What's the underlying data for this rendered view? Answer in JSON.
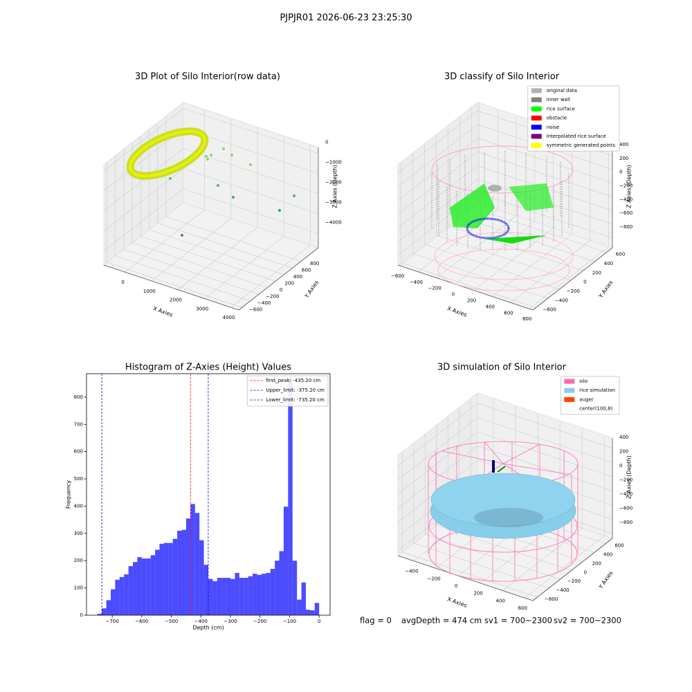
{
  "suptitle": "PJPJR01 2026-06-23 23:25:30",
  "chart_data": [
    {
      "type": "scatter3d",
      "title": "3D Plot of Silo Interior(row data)",
      "xlabel": "X Axies",
      "ylabel": "Y Axies",
      "zlabel": "Z Axies (Depth)",
      "xlim": [
        -800,
        4300
      ],
      "ylim": [
        -676,
        1216
      ],
      "zlim": [
        -4700,
        300
      ],
      "xticks": [
        0,
        1000,
        2000,
        3000,
        4000
      ],
      "yticks": [
        {
          "value": -600,
          "label": "−600"
        },
        {
          "value": -400,
          "label": "−400"
        },
        {
          "value": -200,
          "label": "−200"
        },
        0,
        200,
        400,
        600,
        800
      ],
      "zticks": [
        0,
        {
          "value": -1000,
          "label": "−1000"
        },
        {
          "value": -2000,
          "label": "−2000"
        },
        {
          "value": -3000,
          "label": "−3000"
        },
        {
          "value": -4000,
          "label": "−4000"
        }
      ]
    },
    {
      "type": "scatter3d",
      "title": "3D classify of Silo Interior",
      "xlabel": "X Axies",
      "ylabel": "Y Axies",
      "zlabel": "Z Axies (Depth)",
      "xlim": [
        -620,
        840
      ],
      "ylim": [
        -650,
        700
      ],
      "zlim": [
        -940,
        520
      ],
      "xticks": [
        {
          "value": -600,
          "label": "−600"
        },
        {
          "value": -400,
          "label": "−400"
        },
        {
          "value": -200,
          "label": "−200"
        },
        0,
        200,
        400,
        600,
        800
      ],
      "yticks": [
        {
          "value": -600,
          "label": "−600"
        },
        {
          "value": -400,
          "label": "−400"
        },
        {
          "value": -200,
          "label": "−200"
        },
        0,
        200,
        400,
        600
      ],
      "zticks": [
        {
          "value": -800,
          "label": "−800"
        },
        {
          "value": -600,
          "label": "−600"
        },
        {
          "value": -400,
          "label": "−400"
        },
        {
          "value": -200,
          "label": "−200"
        },
        0,
        200,
        400
      ],
      "legend": "upper right",
      "legend_items": [
        {
          "name": "original data",
          "color": "#b0b0b0"
        },
        {
          "name": "inner wall",
          "color": "#808080"
        },
        {
          "name": "rice surface",
          "color": "#00ff00"
        },
        {
          "name": "obstacle",
          "color": "#ff0000"
        },
        {
          "name": "noise",
          "color": "#0000ff"
        },
        {
          "name": "interpolated rice surface",
          "color": "#800080"
        },
        {
          "name": "symmetric generated points",
          "color": "#ffff00"
        }
      ]
    },
    {
      "type": "histogram",
      "title": "Histogram of Z-Axies (Height) Values",
      "xlabel": "Depth (cm)",
      "ylabel": "Frequency",
      "color": "#0000ff",
      "bins": [
        -750,
        -735,
        -720,
        -705,
        -690,
        -675,
        -660,
        -645,
        -630,
        -615,
        -600,
        -585,
        -570,
        -555,
        -540,
        -525,
        -510,
        -495,
        -480,
        -465,
        -450,
        -435,
        -420,
        -405,
        -390,
        -375,
        -360,
        -345,
        -330,
        -315,
        -300,
        -285,
        -270,
        -255,
        -240,
        -225,
        -210,
        -195,
        -180,
        -165,
        -150,
        -135,
        -120,
        -105,
        -90,
        -75,
        -60,
        -45,
        -30,
        -15,
        0
      ],
      "counts": [
        5,
        25,
        55,
        95,
        130,
        140,
        150,
        180,
        195,
        213,
        208,
        208,
        220,
        240,
        262,
        265,
        265,
        280,
        310,
        313,
        355,
        408,
        375,
        275,
        185,
        133,
        125,
        137,
        137,
        137,
        133,
        155,
        137,
        137,
        143,
        152,
        148,
        152,
        155,
        170,
        200,
        235,
        398,
        870,
        200,
        57,
        120,
        20,
        18,
        45
      ],
      "xlim": [
        -787,
        37
      ],
      "ylim": [
        0,
        886
      ],
      "xticks": [
        {
          "value": -700,
          "label": "−700"
        },
        {
          "value": -600,
          "label": "−600"
        },
        {
          "value": -500,
          "label": "−500"
        },
        {
          "value": -400,
          "label": "−400"
        },
        {
          "value": -300,
          "label": "−300"
        },
        {
          "value": -200,
          "label": "−200"
        },
        {
          "value": -100,
          "label": "−100"
        },
        0
      ],
      "yticks": [
        0,
        100,
        200,
        300,
        400,
        500,
        600,
        700,
        800
      ],
      "legend": "upper right",
      "vlines": [
        {
          "label": "first_peak: -435.20 cm",
          "value": -435.2,
          "color": "#ff0000"
        },
        {
          "label": "Upper_limit: -375.20 cm",
          "value": -375.2,
          "color": "#0000ff"
        },
        {
          "label": "Lower_limit: -735.20 cm",
          "value": -735.2,
          "color": "#00008b"
        }
      ]
    },
    {
      "type": "surface3d",
      "title": "3D simulation of Silo Interior",
      "xlabel": "X Axies",
      "ylabel": "Y Axies",
      "zlabel": "Z Axies (Depth)",
      "xlim": [
        -543,
        673
      ],
      "ylim": [
        -680,
        720
      ],
      "zlim": [
        -868,
        545
      ],
      "xticks": [
        {
          "value": -400,
          "label": "−400"
        },
        {
          "value": -200,
          "label": "−200"
        },
        0,
        200,
        400,
        600
      ],
      "yticks": [
        {
          "value": -600,
          "label": "−600"
        },
        {
          "value": -400,
          "label": "−400"
        },
        {
          "value": -200,
          "label": "−200"
        },
        0,
        200,
        400,
        600
      ],
      "zticks": [
        {
          "value": -800,
          "label": "−800"
        },
        {
          "value": -600,
          "label": "−600"
        },
        {
          "value": -400,
          "label": "−400"
        },
        {
          "value": -200,
          "label": "−200"
        },
        0,
        200,
        400
      ],
      "legend": "upper right",
      "legend_items": [
        {
          "name": "silo",
          "color": "#ff69b4"
        },
        {
          "name": "rice simulation",
          "color": "#87ceeb"
        },
        {
          "name": "auger",
          "color": "#ff4500"
        },
        {
          "name": "center(100,8)",
          "color": "#ffffff"
        }
      ]
    }
  ],
  "footer": [
    "flag = 0",
    "avgDepth = 474 cm",
    "sv1 = 700~2300",
    "sv2 = 700~2300"
  ]
}
